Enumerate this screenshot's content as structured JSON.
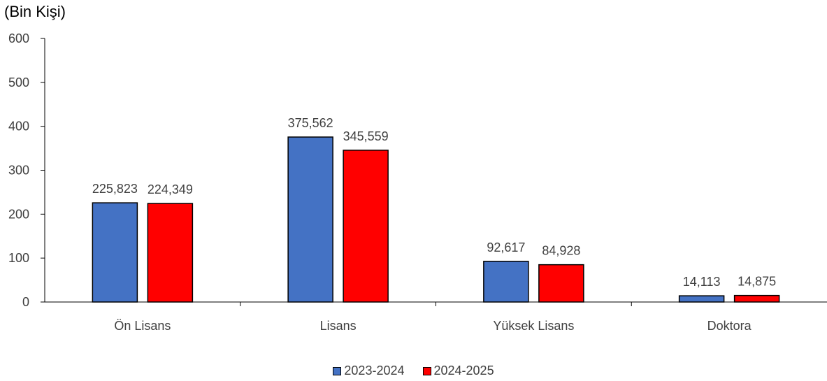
{
  "chart_data": {
    "type": "bar",
    "unit_label": "(Bin Kişi)",
    "categories": [
      "Ön Lisans",
      "Lisans",
      "Yüksek Lisans",
      "Doktora"
    ],
    "series": [
      {
        "name": "2023-2024",
        "color": "#4472C4",
        "values": [
          225.823,
          375.562,
          92.617,
          14.113
        ],
        "labels": [
          "225,823",
          "375,562",
          "92,617",
          "14,113"
        ]
      },
      {
        "name": "2024-2025",
        "color": "#FF0000",
        "values": [
          224.349,
          345.559,
          84.928,
          14.875
        ],
        "labels": [
          "224,349",
          "345,559",
          "84,928",
          "14,875"
        ]
      }
    ],
    "yticks": [
      "0",
      "100",
      "200",
      "300",
      "400",
      "500",
      "600"
    ],
    "ylim": [
      0,
      600
    ],
    "grid": false,
    "legend_position": "bottom"
  }
}
